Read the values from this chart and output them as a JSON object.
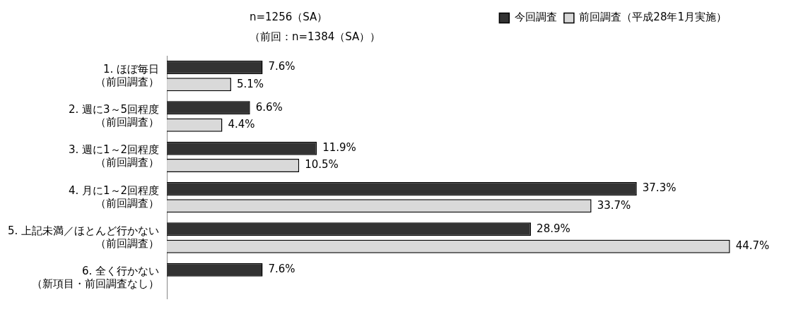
{
  "chart_data": {
    "type": "bar",
    "orientation": "horizontal",
    "categories": [
      "1. ほぼ毎日（前回調査）",
      "2. 週に3～5回程度（前回調査）",
      "3. 週に1～2回程度（前回調査）",
      "4. 月に1～2回程度（前回調査）",
      "5. 上記未満／ほとんど行かない（前回調査）",
      "6. 全く行かない（新項目・前回調査なし）"
    ],
    "series": [
      {
        "name": "今回調査",
        "color": "#333333",
        "values": [
          7.6,
          6.6,
          11.9,
          37.3,
          28.9,
          7.6
        ],
        "value_labels": [
          "7.6%",
          "6.6%",
          "11.9%",
          "37.3%",
          "28.9%",
          "7.6%"
        ]
      },
      {
        "name": "前回調査（平成28年1月実施）",
        "color": "#d9d9d9",
        "values": [
          5.1,
          4.4,
          10.5,
          33.7,
          44.7,
          null
        ],
        "value_labels": [
          "5.1%",
          "4.4%",
          "10.5%",
          "33.7%",
          "44.7%",
          null
        ]
      }
    ],
    "legend": "top right",
    "annotations": [
      "n=1256（SA）",
      "（前回：n=1384（SA））"
    ]
  }
}
